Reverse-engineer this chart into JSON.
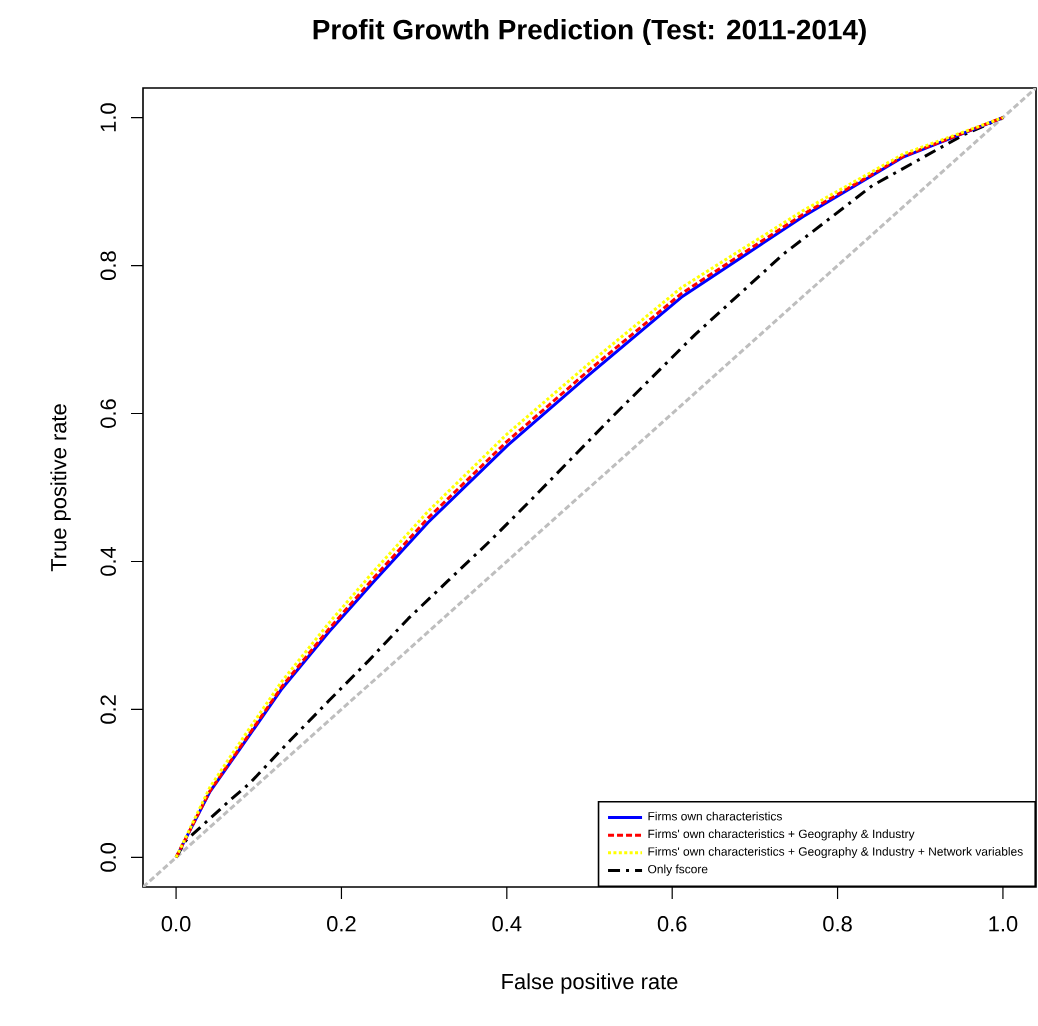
{
  "chart_data": {
    "type": "line",
    "title": "Profit Growth Prediction (Test: 2011-2014)",
    "xlabel": "False positive rate",
    "ylabel": "True positive rate",
    "xlim": [
      -0.04,
      1.04
    ],
    "ylim": [
      -0.04,
      1.04
    ],
    "xticks": [
      {
        "value": 0,
        "label": "0.0"
      },
      {
        "value": 0.2,
        "label": "0.2"
      },
      {
        "value": 0.4,
        "label": "0.4"
      },
      {
        "value": 0.6,
        "label": "0.6"
      },
      {
        "value": 0.8,
        "label": "0.8"
      },
      {
        "value": 1,
        "label": "1.0"
      }
    ],
    "yticks": [
      {
        "value": 0,
        "label": "0.0"
      },
      {
        "value": 0.2,
        "label": "0.2"
      },
      {
        "value": 0.4,
        "label": "0.4"
      },
      {
        "value": 0.6,
        "label": "0.6"
      },
      {
        "value": 0.8,
        "label": "0.8"
      },
      {
        "value": 1,
        "label": "1.0"
      }
    ],
    "legend": "bottom right",
    "marker": "none",
    "series": [
      {
        "color": "#bebebe",
        "line_style": "dashed",
        "x": [
          -0.04,
          1.04
        ],
        "values": [
          -0.04,
          1.04
        ]
      },
      {
        "name": "Firms own characteristics",
        "color": "#0000ff",
        "line_style": "solid",
        "x": [
          0,
          0.041,
          0.08,
          0.128,
          0.185,
          0.24,
          0.305,
          0.4,
          0.5,
          0.611,
          0.7,
          0.758,
          0.88,
          1
        ],
        "values": [
          0,
          0.089,
          0.151,
          0.228,
          0.305,
          0.374,
          0.453,
          0.556,
          0.653,
          0.757,
          0.823,
          0.866,
          0.947,
          1
        ]
      },
      {
        "name": "Firms' own characteristics + Geography & Industry",
        "color": "#ff0000",
        "line_style": "dashed",
        "x": [
          0,
          0.041,
          0.08,
          0.128,
          0.185,
          0.24,
          0.305,
          0.4,
          0.5,
          0.611,
          0.7,
          0.758,
          0.88,
          1
        ],
        "values": [
          0,
          0.09,
          0.153,
          0.231,
          0.309,
          0.379,
          0.459,
          0.562,
          0.659,
          0.762,
          0.827,
          0.869,
          0.948,
          1
        ]
      },
      {
        "name": "Firms' own characteristics + Geography & Industry + Network variables",
        "color": "#ffff00",
        "line_style": "dotted",
        "x": [
          0,
          0.041,
          0.08,
          0.128,
          0.185,
          0.24,
          0.305,
          0.4,
          0.5,
          0.611,
          0.7,
          0.758,
          0.88,
          1
        ],
        "values": [
          0,
          0.095,
          0.16,
          0.238,
          0.317,
          0.388,
          0.468,
          0.572,
          0.668,
          0.77,
          0.833,
          0.874,
          0.951,
          1
        ]
      },
      {
        "name": "Only fscore",
        "color": "#000000",
        "line_style": "dashdot",
        "x": [
          0,
          0.012,
          0.065,
          0.089,
          0.137,
          0.185,
          0.233,
          0.281,
          0.329,
          0.38,
          0.43,
          0.528,
          0.628,
          0.734,
          0.842,
          0.953,
          1
        ],
        "values": [
          0,
          0.023,
          0.077,
          0.1,
          0.157,
          0.212,
          0.266,
          0.323,
          0.374,
          0.428,
          0.484,
          0.596,
          0.707,
          0.815,
          0.908,
          0.977,
          1
        ]
      }
    ]
  }
}
